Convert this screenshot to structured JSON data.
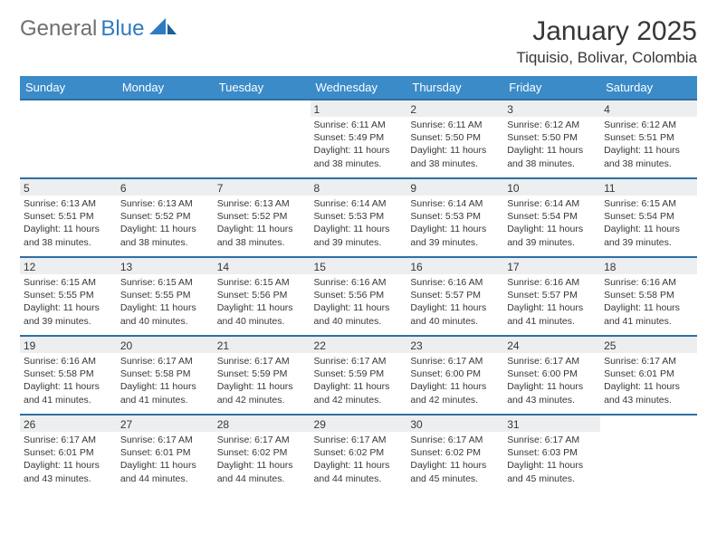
{
  "brand": {
    "name_gray": "General",
    "name_blue": "Blue"
  },
  "header": {
    "title": "January 2025",
    "location": "Tiquisio, Bolivar, Colombia"
  },
  "style": {
    "header_bg": "#3b8bc9",
    "header_fg": "#ffffff",
    "row_border": "#2e6fa3",
    "daynum_bg": "#eceeef",
    "text_color": "#373737",
    "title_fontsize": 30,
    "location_fontsize": 17,
    "dayheader_fontsize": 13,
    "daynum_fontsize": 12,
    "body_fontsize": 10.5,
    "page_bg": "#ffffff"
  },
  "dayHeaders": [
    "Sunday",
    "Monday",
    "Tuesday",
    "Wednesday",
    "Thursday",
    "Friday",
    "Saturday"
  ],
  "weeks": [
    [
      {
        "n": "",
        "sr": "",
        "ss": "",
        "dl": ""
      },
      {
        "n": "",
        "sr": "",
        "ss": "",
        "dl": ""
      },
      {
        "n": "",
        "sr": "",
        "ss": "",
        "dl": ""
      },
      {
        "n": "1",
        "sr": "6:11 AM",
        "ss": "5:49 PM",
        "dl": "11 hours and 38 minutes."
      },
      {
        "n": "2",
        "sr": "6:11 AM",
        "ss": "5:50 PM",
        "dl": "11 hours and 38 minutes."
      },
      {
        "n": "3",
        "sr": "6:12 AM",
        "ss": "5:50 PM",
        "dl": "11 hours and 38 minutes."
      },
      {
        "n": "4",
        "sr": "6:12 AM",
        "ss": "5:51 PM",
        "dl": "11 hours and 38 minutes."
      }
    ],
    [
      {
        "n": "5",
        "sr": "6:13 AM",
        "ss": "5:51 PM",
        "dl": "11 hours and 38 minutes."
      },
      {
        "n": "6",
        "sr": "6:13 AM",
        "ss": "5:52 PM",
        "dl": "11 hours and 38 minutes."
      },
      {
        "n": "7",
        "sr": "6:13 AM",
        "ss": "5:52 PM",
        "dl": "11 hours and 38 minutes."
      },
      {
        "n": "8",
        "sr": "6:14 AM",
        "ss": "5:53 PM",
        "dl": "11 hours and 39 minutes."
      },
      {
        "n": "9",
        "sr": "6:14 AM",
        "ss": "5:53 PM",
        "dl": "11 hours and 39 minutes."
      },
      {
        "n": "10",
        "sr": "6:14 AM",
        "ss": "5:54 PM",
        "dl": "11 hours and 39 minutes."
      },
      {
        "n": "11",
        "sr": "6:15 AM",
        "ss": "5:54 PM",
        "dl": "11 hours and 39 minutes."
      }
    ],
    [
      {
        "n": "12",
        "sr": "6:15 AM",
        "ss": "5:55 PM",
        "dl": "11 hours and 39 minutes."
      },
      {
        "n": "13",
        "sr": "6:15 AM",
        "ss": "5:55 PM",
        "dl": "11 hours and 40 minutes."
      },
      {
        "n": "14",
        "sr": "6:15 AM",
        "ss": "5:56 PM",
        "dl": "11 hours and 40 minutes."
      },
      {
        "n": "15",
        "sr": "6:16 AM",
        "ss": "5:56 PM",
        "dl": "11 hours and 40 minutes."
      },
      {
        "n": "16",
        "sr": "6:16 AM",
        "ss": "5:57 PM",
        "dl": "11 hours and 40 minutes."
      },
      {
        "n": "17",
        "sr": "6:16 AM",
        "ss": "5:57 PM",
        "dl": "11 hours and 41 minutes."
      },
      {
        "n": "18",
        "sr": "6:16 AM",
        "ss": "5:58 PM",
        "dl": "11 hours and 41 minutes."
      }
    ],
    [
      {
        "n": "19",
        "sr": "6:16 AM",
        "ss": "5:58 PM",
        "dl": "11 hours and 41 minutes."
      },
      {
        "n": "20",
        "sr": "6:17 AM",
        "ss": "5:58 PM",
        "dl": "11 hours and 41 minutes."
      },
      {
        "n": "21",
        "sr": "6:17 AM",
        "ss": "5:59 PM",
        "dl": "11 hours and 42 minutes."
      },
      {
        "n": "22",
        "sr": "6:17 AM",
        "ss": "5:59 PM",
        "dl": "11 hours and 42 minutes."
      },
      {
        "n": "23",
        "sr": "6:17 AM",
        "ss": "6:00 PM",
        "dl": "11 hours and 42 minutes."
      },
      {
        "n": "24",
        "sr": "6:17 AM",
        "ss": "6:00 PM",
        "dl": "11 hours and 43 minutes."
      },
      {
        "n": "25",
        "sr": "6:17 AM",
        "ss": "6:01 PM",
        "dl": "11 hours and 43 minutes."
      }
    ],
    [
      {
        "n": "26",
        "sr": "6:17 AM",
        "ss": "6:01 PM",
        "dl": "11 hours and 43 minutes."
      },
      {
        "n": "27",
        "sr": "6:17 AM",
        "ss": "6:01 PM",
        "dl": "11 hours and 44 minutes."
      },
      {
        "n": "28",
        "sr": "6:17 AM",
        "ss": "6:02 PM",
        "dl": "11 hours and 44 minutes."
      },
      {
        "n": "29",
        "sr": "6:17 AM",
        "ss": "6:02 PM",
        "dl": "11 hours and 44 minutes."
      },
      {
        "n": "30",
        "sr": "6:17 AM",
        "ss": "6:02 PM",
        "dl": "11 hours and 45 minutes."
      },
      {
        "n": "31",
        "sr": "6:17 AM",
        "ss": "6:03 PM",
        "dl": "11 hours and 45 minutes."
      },
      {
        "n": "",
        "sr": "",
        "ss": "",
        "dl": ""
      }
    ]
  ],
  "labels": {
    "sunrise": "Sunrise:",
    "sunset": "Sunset:",
    "daylight": "Daylight:"
  }
}
